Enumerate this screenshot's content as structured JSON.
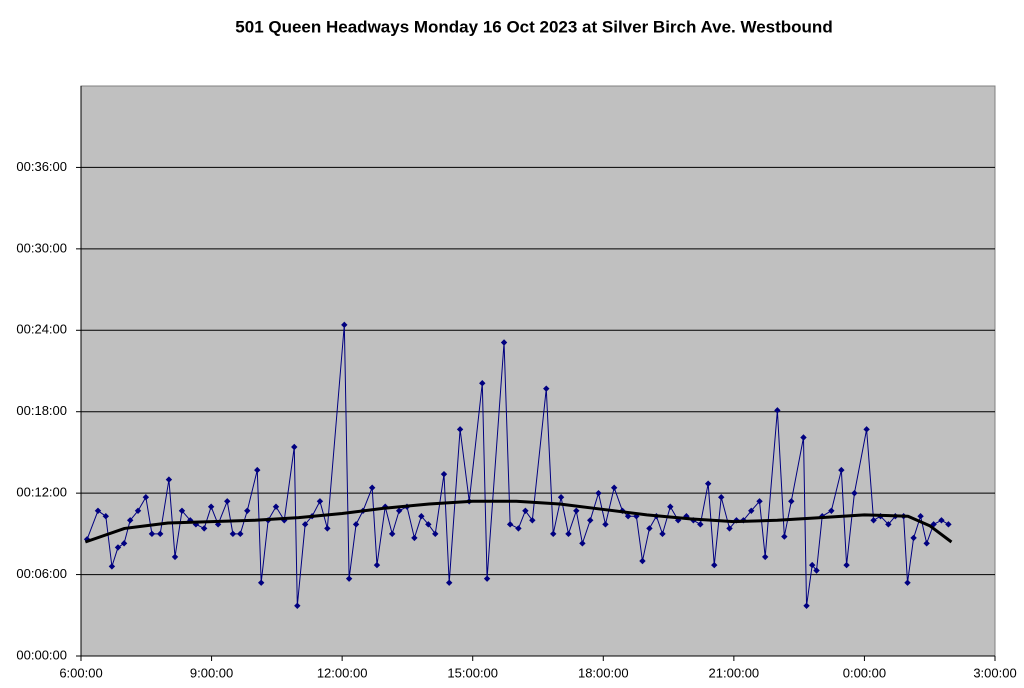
{
  "chart_data": {
    "type": "line",
    "title": "501 Queen Headways Monday 16 Oct 2023 at Silver Birch Ave. Westbound",
    "xlim": [
      6,
      27
    ],
    "xticks": [
      {
        "value": 6,
        "label": "6:00:00"
      },
      {
        "value": 9,
        "label": "9:00:00"
      },
      {
        "value": 12,
        "label": "12:00:00"
      },
      {
        "value": 15,
        "label": "15:00:00"
      },
      {
        "value": 18,
        "label": "18:00:00"
      },
      {
        "value": 21,
        "label": "21:00:00"
      },
      {
        "value": 24,
        "label": "0:00:00"
      },
      {
        "value": 27,
        "label": "3:00:00"
      }
    ],
    "ylim": [
      0,
      42
    ],
    "yticks": [
      {
        "value": 0,
        "label": "00:00:00"
      },
      {
        "value": 6,
        "label": "00:06:00"
      },
      {
        "value": 12,
        "label": "00:12:00"
      },
      {
        "value": 18,
        "label": "00:18:00"
      },
      {
        "value": 24,
        "label": "00:24:00"
      },
      {
        "value": 30,
        "label": "00:30:00"
      },
      {
        "value": 36,
        "label": "00:36:00"
      }
    ],
    "grid": true,
    "series": [
      {
        "color": "#000080",
        "markers": true,
        "x": [
          6.14,
          6.39,
          6.57,
          6.71,
          6.85,
          6.99,
          7.13,
          7.31,
          7.49,
          7.63,
          7.82,
          8.02,
          8.16,
          8.32,
          8.51,
          8.64,
          8.83,
          8.99,
          9.15,
          9.36,
          9.49,
          9.66,
          9.82,
          10.05,
          10.14,
          10.3,
          10.48,
          10.67,
          10.9,
          10.97,
          11.15,
          11.31,
          11.49,
          11.66,
          12.05,
          12.16,
          12.32,
          12.48,
          12.69,
          12.8,
          12.99,
          13.15,
          13.31,
          13.49,
          13.66,
          13.82,
          13.98,
          14.14,
          14.34,
          14.46,
          14.71,
          14.92,
          15.22,
          15.33,
          15.72,
          15.86,
          16.05,
          16.21,
          16.37,
          16.69,
          16.85,
          17.03,
          17.2,
          17.38,
          17.52,
          17.7,
          17.89,
          18.05,
          18.25,
          18.44,
          18.57,
          18.76,
          18.9,
          19.06,
          19.22,
          19.36,
          19.54,
          19.72,
          19.91,
          20.07,
          20.23,
          20.41,
          20.55,
          20.71,
          20.9,
          21.06,
          21.22,
          21.4,
          21.59,
          21.72,
          22.0,
          22.16,
          22.32,
          22.6,
          22.67,
          22.8,
          22.9,
          23.03,
          23.24,
          23.47,
          23.59,
          23.77,
          24.05,
          24.21,
          24.37,
          24.55,
          24.71,
          24.9,
          24.99,
          25.13,
          25.29,
          25.43,
          25.59,
          25.77,
          25.93
        ],
        "values": [
          8.6,
          10.7,
          10.3,
          6.6,
          8.0,
          8.3,
          10.0,
          10.7,
          11.7,
          9.0,
          9.0,
          13.0,
          7.3,
          10.7,
          10.0,
          9.7,
          9.4,
          11.0,
          9.7,
          11.4,
          9.0,
          9.0,
          10.7,
          13.7,
          5.4,
          10.0,
          11.0,
          10.0,
          15.4,
          3.7,
          9.7,
          10.3,
          11.4,
          9.4,
          24.4,
          5.7,
          9.7,
          10.7,
          12.4,
          6.7,
          11.0,
          9.0,
          10.7,
          11.0,
          8.7,
          10.3,
          9.7,
          9.0,
          13.4,
          5.4,
          16.7,
          11.4,
          20.1,
          5.7,
          23.1,
          9.7,
          9.4,
          10.7,
          10.0,
          19.7,
          9.0,
          11.7,
          9.0,
          10.7,
          8.3,
          10.0,
          12.0,
          9.7,
          12.4,
          10.7,
          10.3,
          10.3,
          7.0,
          9.4,
          10.3,
          9.0,
          11.0,
          10.0,
          10.3,
          10.0,
          9.7,
          12.7,
          6.7,
          11.7,
          9.4,
          10.0,
          10.0,
          10.7,
          11.4,
          7.3,
          18.1,
          8.8,
          11.4,
          16.1,
          3.7,
          6.7,
          6.3,
          10.3,
          10.7,
          13.7,
          6.7,
          12.0,
          16.7,
          10.0,
          10.3,
          9.7,
          10.3,
          10.3,
          5.4,
          8.7,
          10.3,
          8.3,
          9.7,
          10.0,
          9.7
        ]
      },
      {
        "color": "#000000",
        "markers": false,
        "x": [
          6.1,
          7,
          8,
          9,
          10,
          11,
          12,
          13,
          14,
          15,
          16,
          17,
          18,
          19,
          20,
          21,
          22,
          23,
          24,
          25,
          25.5,
          26
        ],
        "values": [
          8.4,
          9.4,
          9.8,
          9.9,
          10.0,
          10.2,
          10.5,
          10.9,
          11.2,
          11.4,
          11.4,
          11.2,
          10.8,
          10.4,
          10.1,
          9.9,
          10.0,
          10.2,
          10.4,
          10.3,
          9.6,
          8.4
        ]
      }
    ]
  }
}
